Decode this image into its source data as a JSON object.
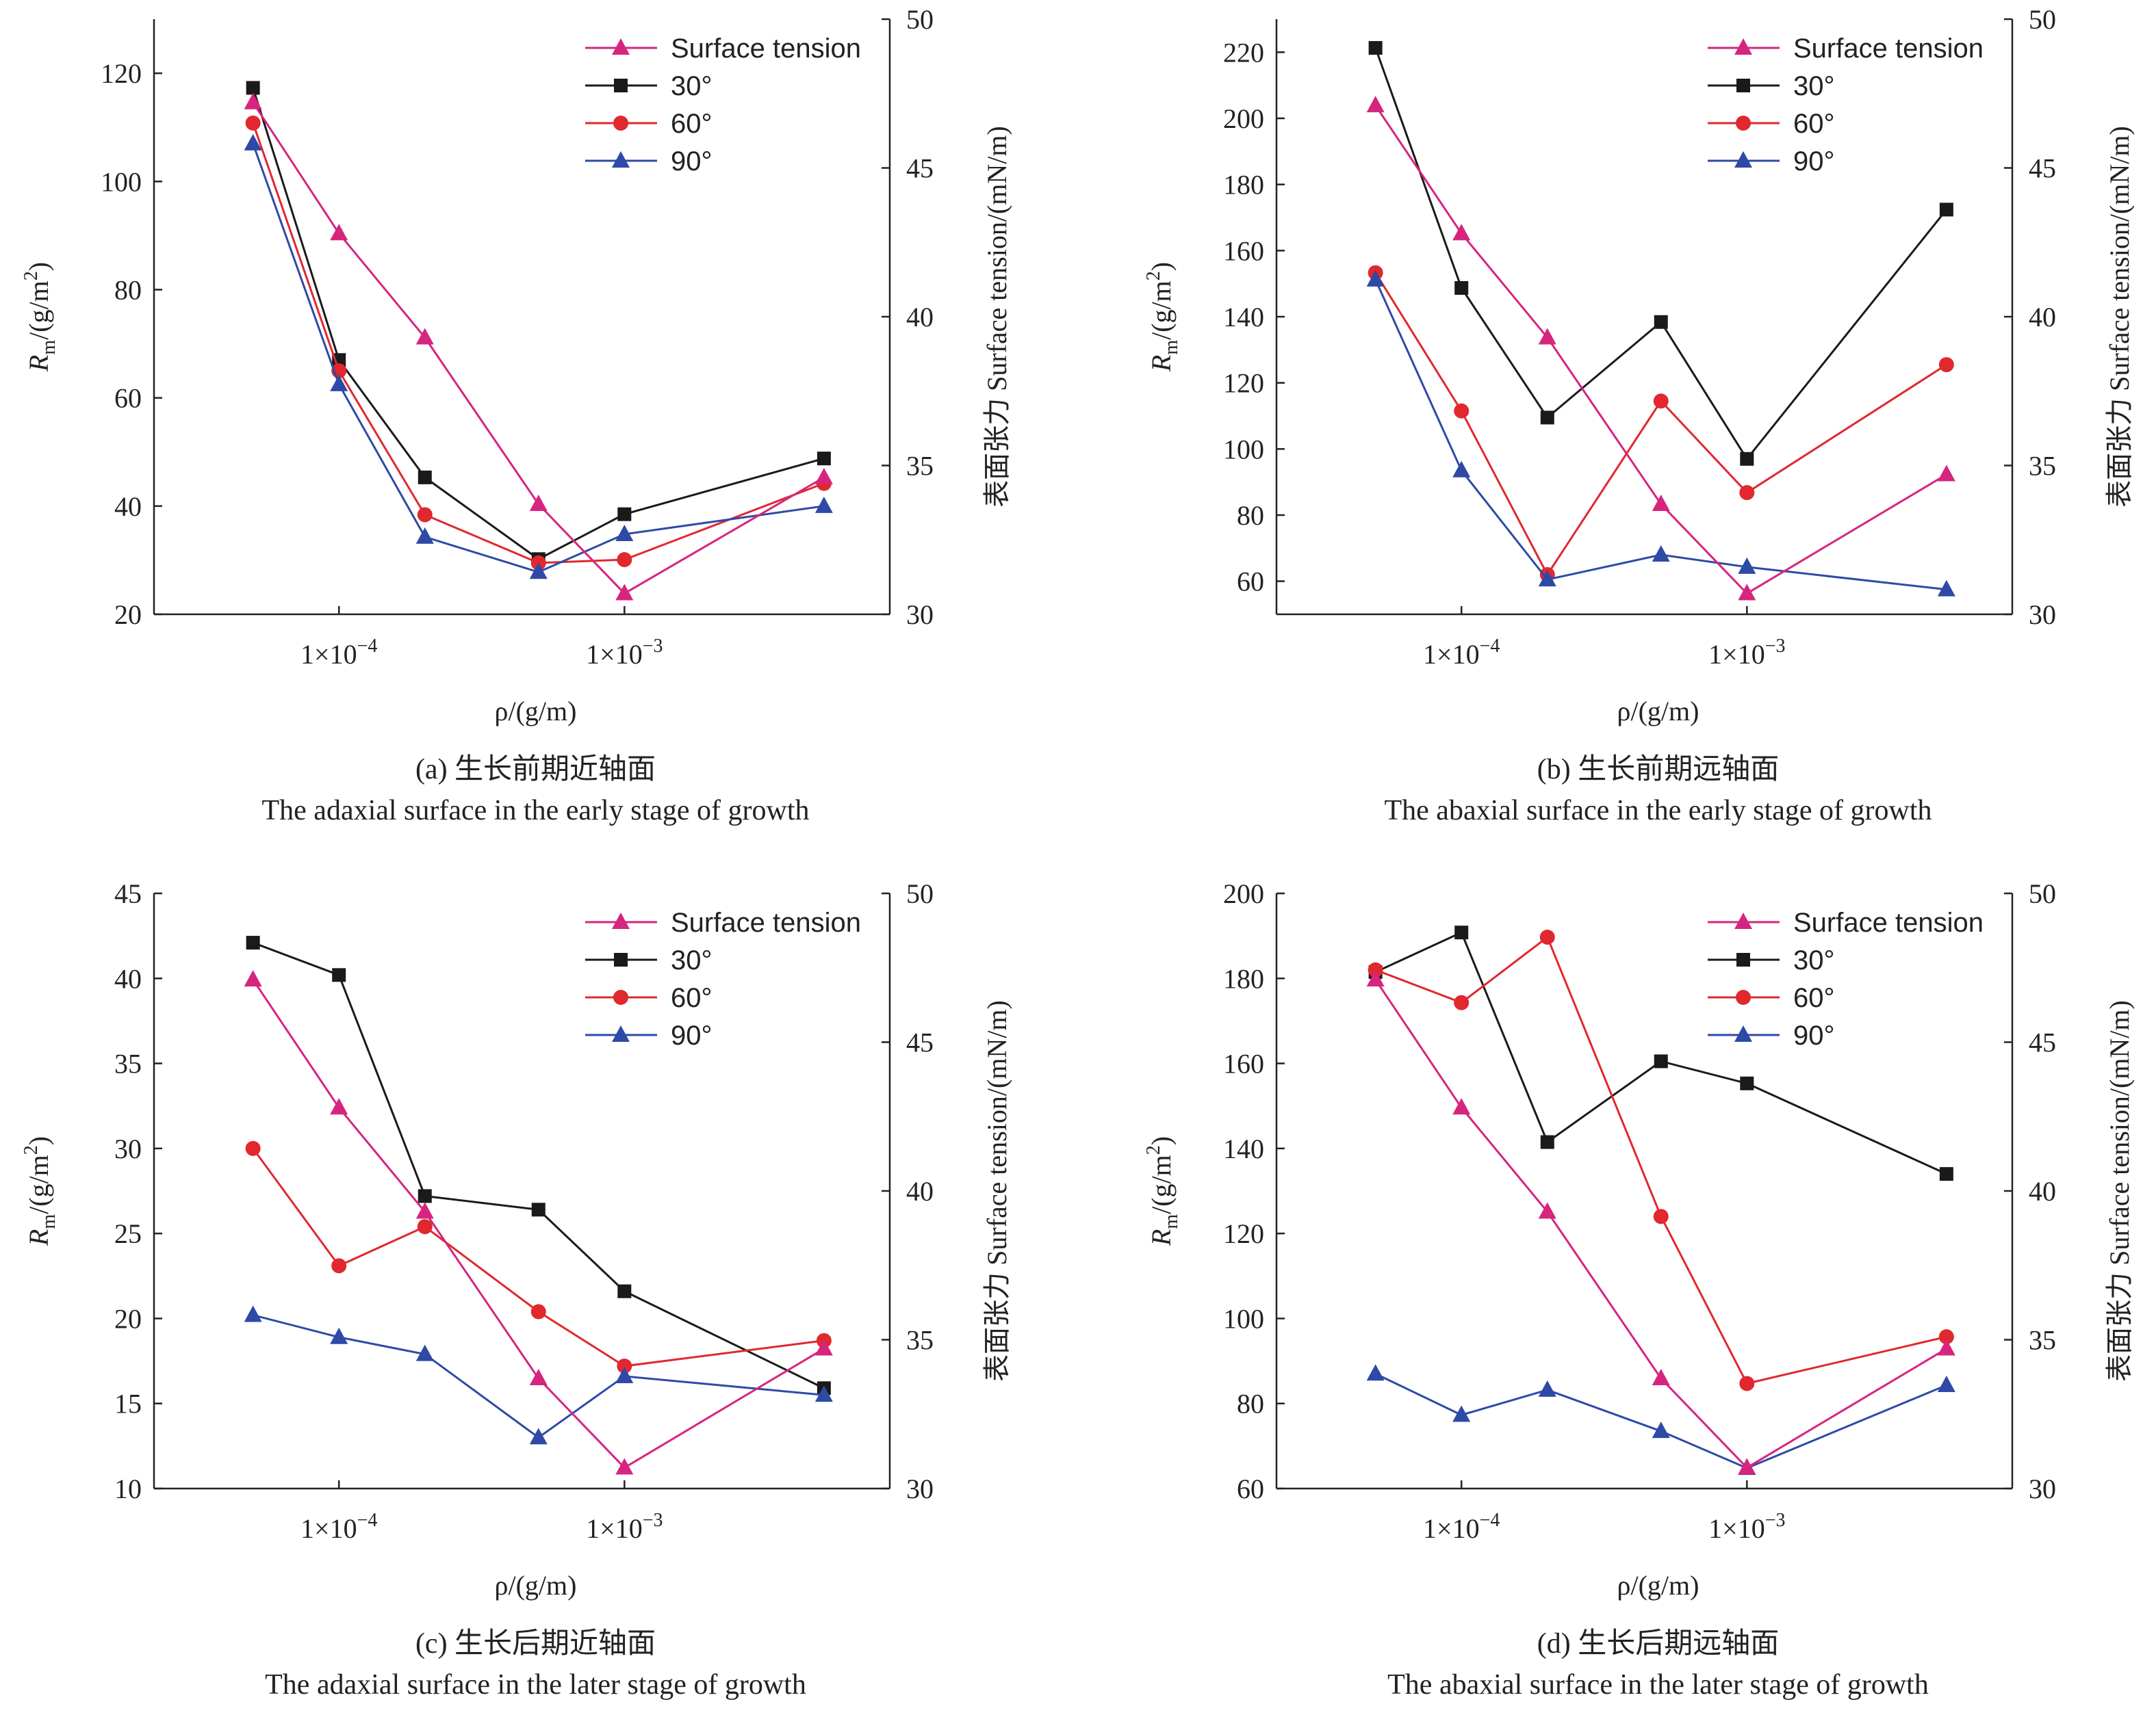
{
  "chart_data": [
    {
      "type": "line",
      "caption_zh": "(a) 生长前期近轴面",
      "caption_en": "The adaxial surface in the early stage of growth",
      "ylabel_main": "R",
      "ylabel_sub": "m",
      "ylabel_rest": "/(g/m",
      "ylabel_sup": "2",
      "ylabel_end": ")",
      "y2label": "表面张力 Surface tension/(mN/m)",
      "xlabel": "ρ/(g/m)",
      "xscale": "log",
      "xticks": [
        {
          "value": 0.0001,
          "label": "1×10",
          "exp": "−4"
        },
        {
          "value": 0.001,
          "label": "1×10",
          "exp": "−3"
        }
      ],
      "xlim": [
        2.25e-05,
        0.0085
      ],
      "ylim": [
        20,
        130
      ],
      "yticks": [
        20,
        40,
        60,
        80,
        100,
        120
      ],
      "y2lim": [
        30,
        50
      ],
      "y2ticks": [
        30,
        35,
        40,
        45,
        50
      ],
      "x": [
        5e-05,
        0.0001,
        0.0002,
        0.0005,
        0.001,
        0.005
      ],
      "legend_position": "top-right",
      "series": [
        {
          "name": "Surface tension",
          "axis": "right",
          "marker": "triangle",
          "color": "#d6257f",
          "values": [
            47.2,
            42.8,
            39.3,
            33.7,
            30.7,
            34.6
          ]
        },
        {
          "name": "30°",
          "axis": "left",
          "marker": "square",
          "color": "#1a1a1a",
          "values": [
            117.3,
            67,
            45.3,
            30.2,
            38.5,
            48.8
          ]
        },
        {
          "name": "60°",
          "axis": "left",
          "marker": "circle",
          "color": "#e0282e",
          "values": [
            110.8,
            65,
            38.4,
            29.5,
            30.1,
            44.2
          ]
        },
        {
          "name": "90°",
          "axis": "left",
          "marker": "triangle",
          "color": "#2e4aa6",
          "values": [
            107,
            62.5,
            34.3,
            27.8,
            34.8,
            40
          ]
        }
      ]
    },
    {
      "type": "line",
      "caption_zh": "(b) 生长前期远轴面",
      "caption_en": "The abaxial surface in the early stage of growth",
      "ylabel_main": "R",
      "ylabel_sub": "m",
      "ylabel_rest": "/(g/m",
      "ylabel_sup": "2",
      "ylabel_end": ")",
      "y2label": "表面张力 Surface tension/(mN/m)",
      "xlabel": "ρ/(g/m)",
      "xscale": "log",
      "xticks": [
        {
          "value": 0.0001,
          "label": "1×10",
          "exp": "−4"
        },
        {
          "value": 0.001,
          "label": "1×10",
          "exp": "−3"
        }
      ],
      "xlim": [
        2.25e-05,
        0.0085
      ],
      "ylim": [
        50,
        230
      ],
      "yticks": [
        60,
        80,
        100,
        120,
        140,
        160,
        180,
        200,
        220
      ],
      "y2lim": [
        30,
        50
      ],
      "y2ticks": [
        30,
        35,
        40,
        45,
        50
      ],
      "x": [
        5e-05,
        0.0001,
        0.0002,
        0.0005,
        0.001,
        0.005
      ],
      "legend_position": "top-right",
      "series": [
        {
          "name": "Surface tension",
          "axis": "right",
          "marker": "triangle",
          "color": "#d6257f",
          "values": [
            47.1,
            42.8,
            39.3,
            33.7,
            30.7,
            34.7
          ]
        },
        {
          "name": "30°",
          "axis": "left",
          "marker": "square",
          "color": "#1a1a1a",
          "values": [
            221.3,
            148.7,
            109.5,
            138.4,
            97,
            172.4
          ]
        },
        {
          "name": "60°",
          "axis": "left",
          "marker": "circle",
          "color": "#e0282e",
          "values": [
            153.3,
            111.5,
            62,
            114.5,
            86.8,
            125.5
          ]
        },
        {
          "name": "90°",
          "axis": "left",
          "marker": "triangle",
          "color": "#2e4aa6",
          "values": [
            151.2,
            93.5,
            60.5,
            68,
            64.3,
            57.5
          ]
        }
      ]
    },
    {
      "type": "line",
      "caption_zh": "(c) 生长后期近轴面",
      "caption_en": "The adaxial surface in the later stage of growth",
      "ylabel_main": "R",
      "ylabel_sub": "m",
      "ylabel_rest": "/(g/m",
      "ylabel_sup": "2",
      "ylabel_end": ")",
      "y2label": "表面张力 Surface tension/(mN/m)",
      "xlabel": "ρ/(g/m)",
      "xscale": "log",
      "xticks": [
        {
          "value": 0.0001,
          "label": "1×10",
          "exp": "−4"
        },
        {
          "value": 0.001,
          "label": "1×10",
          "exp": "−3"
        }
      ],
      "xlim": [
        2.25e-05,
        0.0085
      ],
      "ylim": [
        10,
        45
      ],
      "yticks": [
        10,
        15,
        20,
        25,
        30,
        35,
        40,
        45
      ],
      "y2lim": [
        30,
        50
      ],
      "y2ticks": [
        30,
        35,
        40,
        45,
        50
      ],
      "x": [
        5e-05,
        0.0001,
        0.0002,
        0.0005,
        0.001,
        0.005
      ],
      "legend_position": "top-right",
      "series": [
        {
          "name": "Surface tension",
          "axis": "right",
          "marker": "triangle",
          "color": "#d6257f",
          "values": [
            47.1,
            42.8,
            39.3,
            33.7,
            30.7,
            34.7
          ]
        },
        {
          "name": "30°",
          "axis": "left",
          "marker": "square",
          "color": "#1a1a1a",
          "values": [
            42.1,
            40.2,
            27.2,
            26.4,
            21.6,
            15.9
          ]
        },
        {
          "name": "60°",
          "axis": "left",
          "marker": "circle",
          "color": "#e0282e",
          "values": [
            30,
            23.1,
            25.4,
            20.4,
            17.2,
            18.7
          ]
        },
        {
          "name": "90°",
          "axis": "left",
          "marker": "triangle",
          "color": "#2e4aa6",
          "values": [
            20.2,
            18.9,
            17.9,
            13,
            16.6,
            15.5
          ]
        }
      ]
    },
    {
      "type": "line",
      "caption_zh": "(d) 生长后期远轴面",
      "caption_en": "The abaxial surface in the later stage of growth",
      "ylabel_main": "R",
      "ylabel_sub": "m",
      "ylabel_rest": "/(g/m",
      "ylabel_sup": "2",
      "ylabel_end": ")",
      "y2label": "表面张力 Surface tension/(mN/m)",
      "xlabel": "ρ/(g/m)",
      "xscale": "log",
      "xticks": [
        {
          "value": 0.0001,
          "label": "1×10",
          "exp": "−4"
        },
        {
          "value": 0.001,
          "label": "1×10",
          "exp": "−3"
        }
      ],
      "xlim": [
        2.25e-05,
        0.0085
      ],
      "ylim": [
        60,
        200
      ],
      "yticks": [
        60,
        80,
        100,
        120,
        140,
        160,
        180,
        200
      ],
      "y2lim": [
        30,
        50
      ],
      "y2ticks": [
        30,
        35,
        40,
        45,
        50
      ],
      "x": [
        5e-05,
        0.0001,
        0.0002,
        0.0005,
        0.001,
        0.005
      ],
      "legend_position": "top-right",
      "series": [
        {
          "name": "Surface tension",
          "axis": "right",
          "marker": "triangle",
          "color": "#d6257f",
          "values": [
            47.1,
            42.8,
            39.3,
            33.7,
            30.7,
            34.7
          ]
        },
        {
          "name": "30°",
          "axis": "left",
          "marker": "square",
          "color": "#1a1a1a",
          "values": [
            181.5,
            190.8,
            141.5,
            160.5,
            155.3,
            134
          ]
        },
        {
          "name": "60°",
          "axis": "left",
          "marker": "circle",
          "color": "#e0282e",
          "values": [
            182,
            174.3,
            189.7,
            124,
            84.7,
            95.7
          ]
        },
        {
          "name": "90°",
          "axis": "left",
          "marker": "triangle",
          "color": "#2e4aa6",
          "values": [
            87,
            77.3,
            83.2,
            73.5,
            64.8,
            84.3
          ]
        }
      ]
    }
  ]
}
